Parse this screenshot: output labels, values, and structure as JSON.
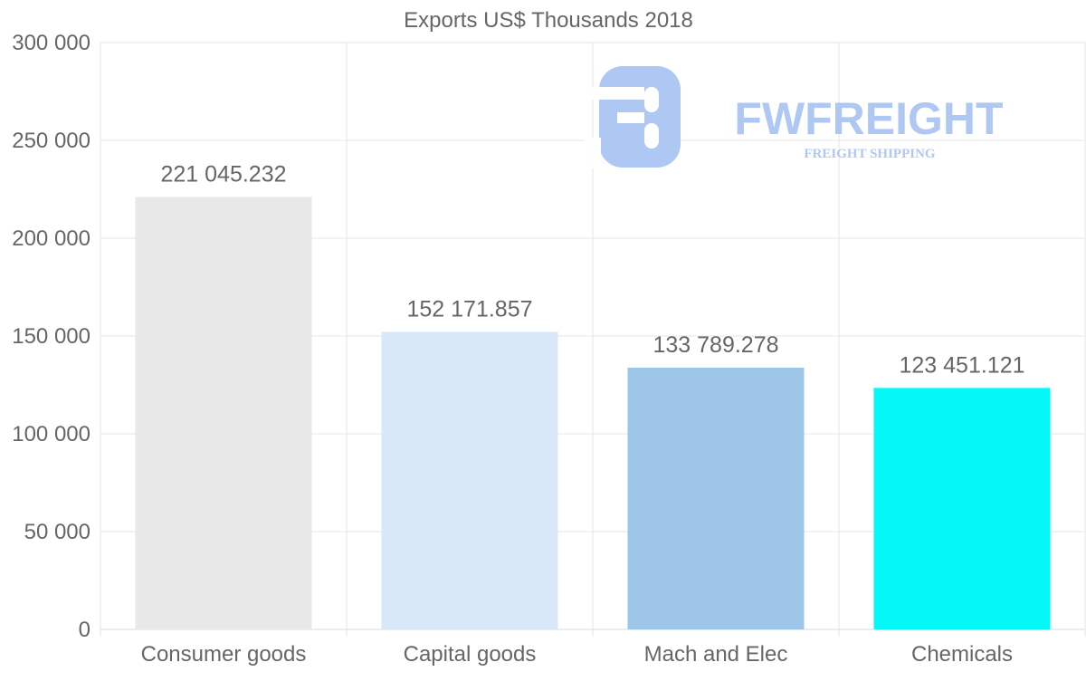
{
  "chart_data": {
    "type": "bar",
    "title": "Exports US$ Thousands 2018",
    "categories": [
      "Consumer goods",
      "Capital goods",
      "Mach and Elec",
      "Chemicals"
    ],
    "values": [
      221045.232,
      152171.857,
      133789.278,
      123451.121
    ],
    "value_labels": [
      "221 045.232",
      "152 171.857",
      "133 789.278",
      "123 451.121"
    ],
    "colors": [
      "#e8e8e8",
      "#d9e8f9",
      "#9cc5e7",
      "#05f8f8"
    ],
    "ylim": [
      0,
      300000
    ],
    "yticks": [
      0,
      50000,
      100000,
      150000,
      200000,
      250000,
      300000
    ],
    "ytick_labels": [
      "0",
      "50 000",
      "100 000",
      "150 000",
      "200 000",
      "250 000",
      "300 000"
    ],
    "xlabel": "",
    "ylabel": "",
    "grid": true,
    "legend": "none"
  },
  "watermark": {
    "brand": "FWFREIGHT",
    "tagline": "FREIGHT SHIPPING",
    "color": "#a7c3f2"
  }
}
